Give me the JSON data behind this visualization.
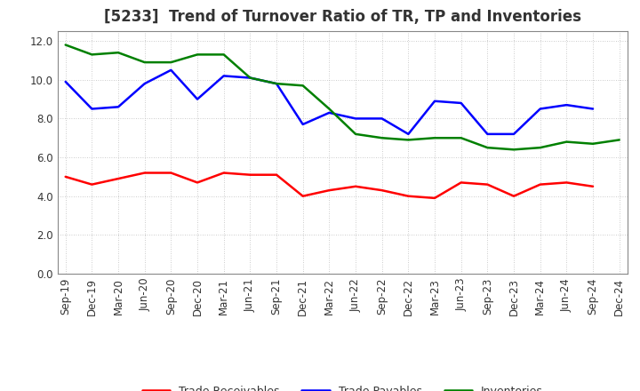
{
  "title": "[5233]  Trend of Turnover Ratio of TR, TP and Inventories",
  "x_labels": [
    "Sep-19",
    "Dec-19",
    "Mar-20",
    "Jun-20",
    "Sep-20",
    "Dec-20",
    "Mar-21",
    "Jun-21",
    "Sep-21",
    "Dec-21",
    "Mar-22",
    "Jun-22",
    "Sep-22",
    "Dec-22",
    "Mar-23",
    "Jun-23",
    "Sep-23",
    "Dec-23",
    "Mar-24",
    "Jun-24",
    "Sep-24",
    "Dec-24"
  ],
  "trade_receivables": [
    5.0,
    4.6,
    4.9,
    5.2,
    5.2,
    4.7,
    5.2,
    5.1,
    5.1,
    4.0,
    4.3,
    4.5,
    4.3,
    4.0,
    3.9,
    4.7,
    4.6,
    4.0,
    4.6,
    4.7,
    4.5,
    null
  ],
  "trade_payables": [
    9.9,
    8.5,
    8.6,
    9.8,
    10.5,
    9.0,
    10.2,
    10.1,
    9.8,
    7.7,
    8.3,
    8.0,
    8.0,
    7.2,
    8.9,
    8.8,
    7.2,
    7.2,
    8.5,
    8.7,
    8.5,
    null
  ],
  "inventories": [
    11.8,
    11.3,
    11.4,
    10.9,
    10.9,
    11.3,
    11.3,
    10.1,
    9.8,
    9.7,
    8.5,
    7.2,
    7.0,
    6.9,
    7.0,
    7.0,
    6.5,
    6.4,
    6.5,
    6.8,
    6.7,
    6.9
  ],
  "ylim": [
    0,
    12.5
  ],
  "yticks": [
    0.0,
    2.0,
    4.0,
    6.0,
    8.0,
    10.0,
    12.0
  ],
  "color_tr": "#ff0000",
  "color_tp": "#0000ff",
  "color_inv": "#008000",
  "bg_color": "#ffffff",
  "grid_color": "#aaaaaa",
  "text_color": "#333333",
  "title_fontsize": 12,
  "legend_fontsize": 9,
  "axis_fontsize": 8.5
}
